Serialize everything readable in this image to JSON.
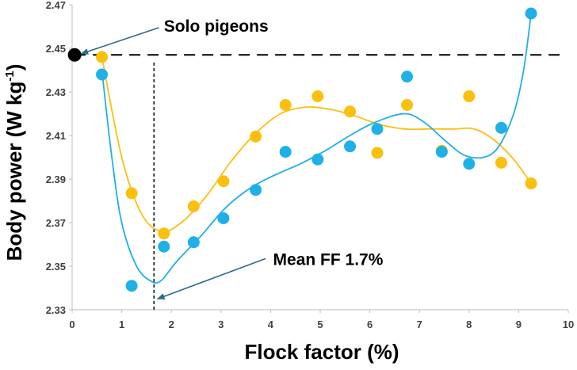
{
  "chart_data": {
    "type": "scatter",
    "xlabel": "Flock factor (%)",
    "ylabel_main": "Body power (W kg",
    "ylabel_sup": "-1",
    "ylabel_close": ")",
    "xlim": [
      0,
      10
    ],
    "ylim": [
      2.33,
      2.47
    ],
    "xticks": [
      "0",
      "1",
      "2",
      "3",
      "4",
      "5",
      "6",
      "7",
      "8",
      "9",
      "10"
    ],
    "yticks": [
      "2.33",
      "2.35",
      "2.37",
      "2.39",
      "2.41",
      "2.43",
      "2.45",
      "2.47"
    ],
    "grid": false,
    "colors": {
      "blue": "#1fb0e6",
      "yellow": "#fbbf0e",
      "reference": "#000000",
      "arrow": "#2e6b86"
    },
    "series": [
      {
        "color": "yellow",
        "points": [
          [
            0.6,
            2.446
          ],
          [
            1.2,
            2.3835
          ],
          [
            1.85,
            2.365
          ],
          [
            2.45,
            2.3775
          ],
          [
            3.05,
            2.389
          ],
          [
            3.7,
            2.4095
          ],
          [
            4.3,
            2.424
          ],
          [
            4.95,
            2.428
          ],
          [
            5.6,
            2.421
          ],
          [
            6.15,
            2.402
          ],
          [
            6.75,
            2.424
          ],
          [
            7.45,
            2.403
          ],
          [
            8.0,
            2.428
          ],
          [
            8.65,
            2.3975
          ],
          [
            9.25,
            2.388
          ]
        ],
        "curve": [
          [
            0.6,
            2.446
          ],
          [
            1.0,
            2.4
          ],
          [
            1.4,
            2.374
          ],
          [
            1.8,
            2.366
          ],
          [
            2.2,
            2.37
          ],
          [
            2.7,
            2.382
          ],
          [
            3.2,
            2.398
          ],
          [
            3.7,
            2.411
          ],
          [
            4.2,
            2.42
          ],
          [
            4.7,
            2.423
          ],
          [
            5.2,
            2.422
          ],
          [
            5.7,
            2.419
          ],
          [
            6.2,
            2.415
          ],
          [
            6.7,
            2.413
          ],
          [
            7.2,
            2.413
          ],
          [
            7.7,
            2.413
          ],
          [
            8.1,
            2.413
          ],
          [
            8.5,
            2.408
          ],
          [
            8.9,
            2.399
          ],
          [
            9.25,
            2.388
          ]
        ]
      },
      {
        "color": "blue",
        "points": [
          [
            0.6,
            2.438
          ],
          [
            1.2,
            2.341
          ],
          [
            1.85,
            2.359
          ],
          [
            2.45,
            2.361
          ],
          [
            3.05,
            2.372
          ],
          [
            3.7,
            2.385
          ],
          [
            4.3,
            2.4025
          ],
          [
            4.95,
            2.399
          ],
          [
            5.6,
            2.405
          ],
          [
            6.15,
            2.413
          ],
          [
            6.75,
            2.437
          ],
          [
            7.45,
            2.4025
          ],
          [
            8.0,
            2.397
          ],
          [
            8.65,
            2.4135
          ],
          [
            9.25,
            2.466
          ]
        ],
        "curve": [
          [
            0.6,
            2.44
          ],
          [
            0.8,
            2.4
          ],
          [
            1.0,
            2.37
          ],
          [
            1.3,
            2.35
          ],
          [
            1.6,
            2.343
          ],
          [
            1.8,
            2.3435
          ],
          [
            2.1,
            2.352
          ],
          [
            2.6,
            2.364
          ],
          [
            3.1,
            2.377
          ],
          [
            3.6,
            2.386
          ],
          [
            4.1,
            2.392
          ],
          [
            4.6,
            2.397
          ],
          [
            5.1,
            2.403
          ],
          [
            5.6,
            2.41
          ],
          [
            6.1,
            2.416
          ],
          [
            6.7,
            2.42
          ],
          [
            7.1,
            2.416
          ],
          [
            7.5,
            2.408
          ],
          [
            7.9,
            2.401
          ],
          [
            8.3,
            2.4
          ],
          [
            8.6,
            2.405
          ],
          [
            8.9,
            2.42
          ],
          [
            9.1,
            2.44
          ],
          [
            9.25,
            2.466
          ]
        ]
      }
    ],
    "solo_point": {
      "x": 0.05,
      "y": 2.447
    },
    "reference_line_y": 2.447,
    "mean_line_x": 1.65,
    "annotations": [
      {
        "text": "Solo pigeons",
        "tx": 1.85,
        "ty": 2.4605,
        "arrow_from": [
          1.75,
          2.4595
        ],
        "arrow_to": [
          0.18,
          2.4475
        ]
      },
      {
        "text": "Mean FF 1.7%",
        "tx": 4.05,
        "ty": 2.3535,
        "arrow_from": [
          3.9,
          2.3535
        ],
        "arrow_to": [
          1.72,
          2.335
        ]
      }
    ]
  }
}
